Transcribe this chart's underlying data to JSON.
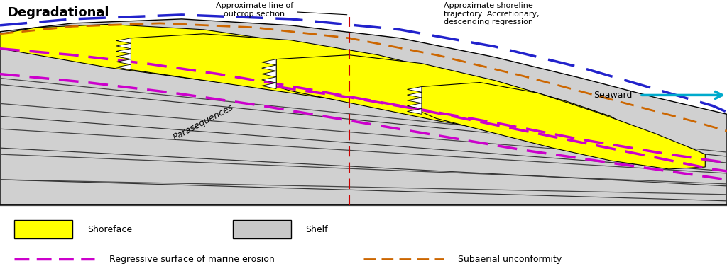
{
  "title": "Degradational",
  "title_fontsize": 13,
  "bg_color": "#ffffff",
  "shelf_bg_color": "#d0d0d0",
  "shoreface_color": "#ffff00",
  "shelf_color": "#c8c8c8",
  "magenta_color": "#cc00cc",
  "blue_color": "#2222cc",
  "orange_color": "#cc6600",
  "red_color": "#cc0000",
  "arrow_color": "#00aacc",
  "black": "#000000",
  "outcrop_label": "Approximate line of\noutcrop section",
  "shoreline_label": "Approximate shoreline\ntrajectory: Accretionary,\ndescending regression",
  "parasequences_label": "Parasequences",
  "seaward_label": "Seaward",
  "legend_shoreface": "Shoreface",
  "legend_shelf": "Shelf",
  "legend_rsme": "Regressive surface of marine erosion",
  "legend_su": "Subaerial unconformity",
  "fig_width": 10.24,
  "fig_height": 3.83
}
